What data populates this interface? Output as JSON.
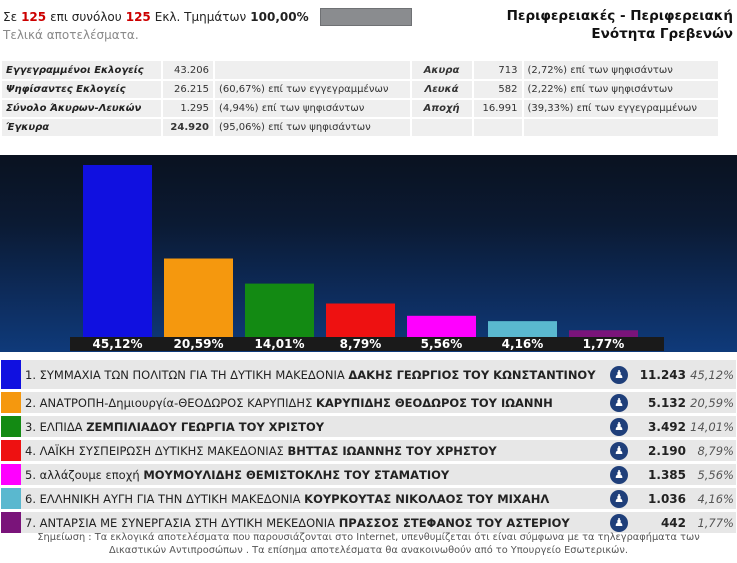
{
  "header": {
    "prefix": "Σε",
    "counted": "125",
    "middle": "επι συνόλου",
    "total": "125",
    "section_label": "Εκλ. Τμημάτων",
    "percent": "100,00%",
    "final_text": "Τελικά αποτελέσματα.",
    "progress_fraction": 1.0,
    "progress_color": "#8a8c8f"
  },
  "region": {
    "title_line1": "Περιφερειακές - Περιφερειακή",
    "title_line2": "Ενότητα Γρεβενών"
  },
  "stats": {
    "rows": [
      {
        "label": "Εγγεγραμμένοι Εκλογείς",
        "value": "43.206",
        "desc": "",
        "label2": "Ακυρα",
        "value2": "713",
        "desc2": "(2,72%) επί των ψηφισάντων"
      },
      {
        "label": "Ψηφίσαντες Εκλογείς",
        "value": "26.215",
        "desc": "(60,67%) επί των εγγεγραμμένων",
        "label2": "Λευκά",
        "value2": "582",
        "desc2": "(2,22%) επί των ψηφισάντων"
      },
      {
        "label": "Σύνολο Άκυρων-Λευκών",
        "value": "1.295",
        "desc": "(4,94%) επί των ψηφισάντων",
        "label2": "Αποχή",
        "value2": "16.991",
        "desc2": "(39,33%) επί των εγγεγραμμένων"
      },
      {
        "label": "Έγκυρα",
        "value": "24.920",
        "desc": "(95,06%) επί των ψηφισάντων",
        "label2": "",
        "value2": "",
        "desc2": ""
      }
    ]
  },
  "chart_data": {
    "type": "bar",
    "categories": [
      "1",
      "2",
      "3",
      "4",
      "5",
      "6",
      "7"
    ],
    "values": [
      45.12,
      20.59,
      14.01,
      8.79,
      5.56,
      4.16,
      1.77
    ],
    "labels": [
      "45,12%",
      "20,59%",
      "14,01%",
      "8,79%",
      "5,56%",
      "4,16%",
      "1,77%"
    ],
    "colors": [
      "#1010e0",
      "#f5980e",
      "#138a13",
      "#ee1111",
      "#ff00ff",
      "#5ab8cf",
      "#7a147a"
    ],
    "ylim": [
      0,
      45.12
    ],
    "title": "",
    "xlabel": "",
    "ylabel": ""
  },
  "candidates": [
    {
      "num": "1.",
      "party": "ΣΥΜΜΑΧΙΑ ΤΩΝ ΠΟΛΙΤΩΝ ΓΙΑ ΤΗ ΔΥΤΙΚΗ ΜΑΚΕΔΟΝΙΑ",
      "leader": "ΔΑΚΗΣ ΓΕΩΡΓΙΟΣ ΤΟΥ ΚΩΝΣΤΑΝΤΙΝΟΥ",
      "votes": "11.243",
      "pct": "45,12%",
      "color": "#1010e0",
      "icon": "person-icon"
    },
    {
      "num": "2.",
      "party": "ΑΝΑΤΡΟΠΗ-Δημιουργία-ΘΕΟΔΩΡΟΣ ΚΑΡΥΠΙΔΗΣ",
      "leader": "ΚΑΡΥΠΙΔΗΣ ΘΕΟΔΩΡΟΣ ΤΟΥ ΙΩΑΝΝΗ",
      "votes": "5.132",
      "pct": "20,59%",
      "color": "#f5980e",
      "icon": "person-icon"
    },
    {
      "num": "3.",
      "party": "ΕΛΠΙΔΑ",
      "leader": "ΖΕΜΠΙΛΙΑΔΟΥ ΓΕΩΡΓΙΑ ΤΟΥ ΧΡΙΣΤΟΥ",
      "votes": "3.492",
      "pct": "14,01%",
      "color": "#138a13",
      "icon": "person-icon"
    },
    {
      "num": "4.",
      "party": "ΛΑΪΚΗ ΣΥΣΠΕΙΡΩΣΗ ΔΥΤΙΚΗΣ ΜΑΚΕΔΟΝΙΑΣ",
      "leader": "ΒΗΤΤΑΣ ΙΩΑΝΝΗΣ ΤΟΥ ΧΡΗΣΤΟΥ",
      "votes": "2.190",
      "pct": "8,79%",
      "color": "#ee1111",
      "icon": "person-icon"
    },
    {
      "num": "5.",
      "party": "αλλάζουμε εποχή",
      "leader": "ΜΟΥΜΟΥΛΙΔΗΣ ΘΕΜΙΣΤΟΚΛΗΣ ΤΟΥ ΣΤΑΜΑΤΙΟΥ",
      "votes": "1.385",
      "pct": "5,56%",
      "color": "#ff00ff",
      "icon": "person-icon"
    },
    {
      "num": "6.",
      "party": "ΕΛΛΗΝΙΚΗ ΑΥΓΗ ΓΙΑ ΤΗΝ ΔΥΤΙΚΗ ΜΑΚΕΔΟΝΙΑ",
      "leader": "ΚΟΥΡΚΟΥΤΑΣ ΝΙΚΟΛΑΟΣ ΤΟΥ ΜΙΧΑΗΛ",
      "votes": "1.036",
      "pct": "4,16%",
      "color": "#5ab8cf",
      "icon": "person-icon"
    },
    {
      "num": "7.",
      "party": "ΑΝΤΑΡΣΙΑ ΜΕ ΣΥΝΕΡΓΑΣΙΑ ΣΤΗ ΔΥΤΙΚΗ ΜΕΚΕΔΟΝΙΑ",
      "leader": "ΠΡΑΣΣΟΣ ΣΤΕΦΑΝΟΣ ΤΟΥ ΑΣΤΕΡΙΟΥ",
      "votes": "442",
      "pct": "1,77%",
      "color": "#7a147a",
      "icon": "person-icon"
    }
  ],
  "note": {
    "line1": "Σημείωση : Τα εκλογικά αποτελέσματα που παρουσιάζονται στο Internet, υπενθυμίζεται ότι είναι σύμφωνα με τα τηλεγραφήματα των",
    "line2": "Δικαστικών Αντιπροσώπων . Τα επίσημα αποτελέσματα θα ανακοινωθούν από το Υπουργείο Εσωτερικών."
  }
}
